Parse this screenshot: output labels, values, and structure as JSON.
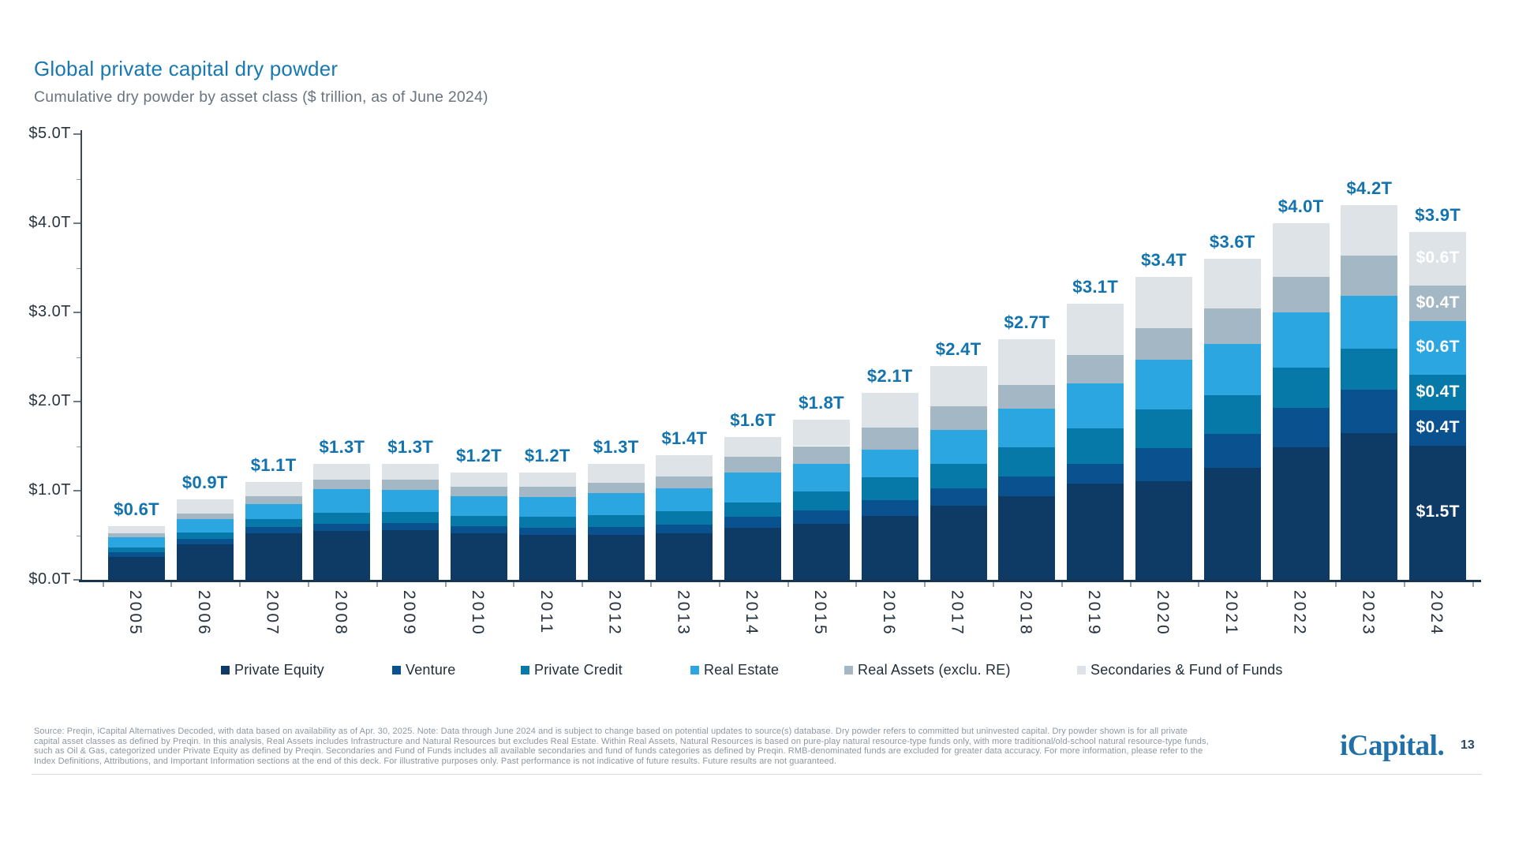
{
  "header": {
    "title": "Global private capital dry powder",
    "subtitle": "Cumulative dry powder by asset class ($ trillion, as of June 2024)"
  },
  "chart_data": {
    "type": "bar",
    "stacked": true,
    "title": "Global private capital dry powder",
    "subtitle": "Cumulative dry powder by asset class ($ trillion, as of June 2024)",
    "unit": "$ trillion",
    "grid": false,
    "legend_position": "bottom",
    "ylim": [
      0,
      5
    ],
    "y_ticks": [
      "$0.0T",
      "$1.0T",
      "$2.0T",
      "$3.0T",
      "$4.0T",
      "$5.0T"
    ],
    "categories": [
      "2005",
      "2006",
      "2007",
      "2008",
      "2009",
      "2010",
      "2011",
      "2012",
      "2013",
      "2014",
      "2015",
      "2016",
      "2017",
      "2018",
      "2019",
      "2020",
      "2021",
      "2022",
      "2023",
      "2024"
    ],
    "series": [
      {
        "name": "Private Equity",
        "color": "#0d3b66",
        "values": [
          0.26,
          0.4,
          0.52,
          0.55,
          0.56,
          0.52,
          0.5,
          0.5,
          0.52,
          0.58,
          0.63,
          0.72,
          0.83,
          0.94,
          1.08,
          1.11,
          1.26,
          1.49,
          1.65,
          1.5
        ]
      },
      {
        "name": "Venture",
        "color": "#0a528f",
        "values": [
          0.05,
          0.06,
          0.07,
          0.08,
          0.08,
          0.08,
          0.08,
          0.09,
          0.1,
          0.13,
          0.15,
          0.17,
          0.2,
          0.22,
          0.22,
          0.37,
          0.38,
          0.44,
          0.48,
          0.4
        ]
      },
      {
        "name": "Private Credit",
        "color": "#0679a8",
        "values": [
          0.05,
          0.07,
          0.09,
          0.12,
          0.12,
          0.12,
          0.13,
          0.14,
          0.15,
          0.16,
          0.21,
          0.26,
          0.27,
          0.33,
          0.4,
          0.43,
          0.43,
          0.45,
          0.46,
          0.4
        ]
      },
      {
        "name": "Real Estate",
        "color": "#2ca6e0",
        "values": [
          0.12,
          0.15,
          0.17,
          0.27,
          0.25,
          0.22,
          0.22,
          0.24,
          0.26,
          0.33,
          0.31,
          0.31,
          0.38,
          0.43,
          0.5,
          0.56,
          0.58,
          0.62,
          0.6,
          0.6
        ]
      },
      {
        "name": "Real Assets (exclu. RE)",
        "color": "#a4b7c4",
        "values": [
          0.04,
          0.06,
          0.09,
          0.1,
          0.11,
          0.1,
          0.11,
          0.12,
          0.13,
          0.18,
          0.2,
          0.25,
          0.27,
          0.27,
          0.32,
          0.35,
          0.39,
          0.4,
          0.45,
          0.4
        ]
      },
      {
        "name": "Secondaries & Fund of Funds",
        "color": "#dde3e6",
        "values": [
          0.08,
          0.16,
          0.16,
          0.18,
          0.18,
          0.16,
          0.16,
          0.21,
          0.24,
          0.22,
          0.3,
          0.39,
          0.45,
          0.51,
          0.58,
          0.58,
          0.56,
          0.6,
          0.56,
          0.6
        ]
      }
    ],
    "totals": [
      "$0.6T",
      "$0.9T",
      "$1.1T",
      "$1.3T",
      "$1.3T",
      "$1.2T",
      "$1.2T",
      "$1.3T",
      "$1.4T",
      "$1.6T",
      "$1.8T",
      "$2.1T",
      "$2.4T",
      "$2.7T",
      "$3.1T",
      "$3.4T",
      "$3.6T",
      "$4.0T",
      "$4.2T",
      "$3.9T"
    ],
    "bar_2024_segment_labels": {
      "Private Equity": "$1.5T",
      "Venture": "$0.4T",
      "Private Credit": "$0.4T",
      "Real Estate": "$0.6T",
      "Real Assets (exclu. RE)": "$0.4T",
      "Secondaries & Fund of Funds": "$0.6T"
    }
  },
  "footer": {
    "lines": [
      "Source: Preqin, iCapital Alternatives Decoded, with data based on availability as of Apr. 30, 2025. Note: Data through June 2024 and is subject to change based on potential updates to source(s) database. Dry powder refers to committed but uninvested capital. Dry powder shown is for all private",
      "capital asset classes as defined by Preqin. In this analysis, Real Assets includes Infrastructure and Natural Resources but excludes Real Estate. Within Real Assets, Natural Resources is based on pure-play natural resource-type funds only, with more traditional/old-school natural resource-type funds,",
      "such as Oil & Gas, categorized under Private Equity as defined by Preqin. Secondaries and Fund of Funds includes all available secondaries and fund of funds categories as defined by Preqin. RMB-denominated funds are excluded for greater data accuracy. For more information, please refer to the",
      "Index Definitions, Attributions, and Important Information sections at the end of this deck. For illustrative purposes only. Past performance is not indicative of future results. Future results are not guaranteed."
    ]
  },
  "branding": {
    "logo_text": "iCapital.",
    "page_number": "13"
  }
}
